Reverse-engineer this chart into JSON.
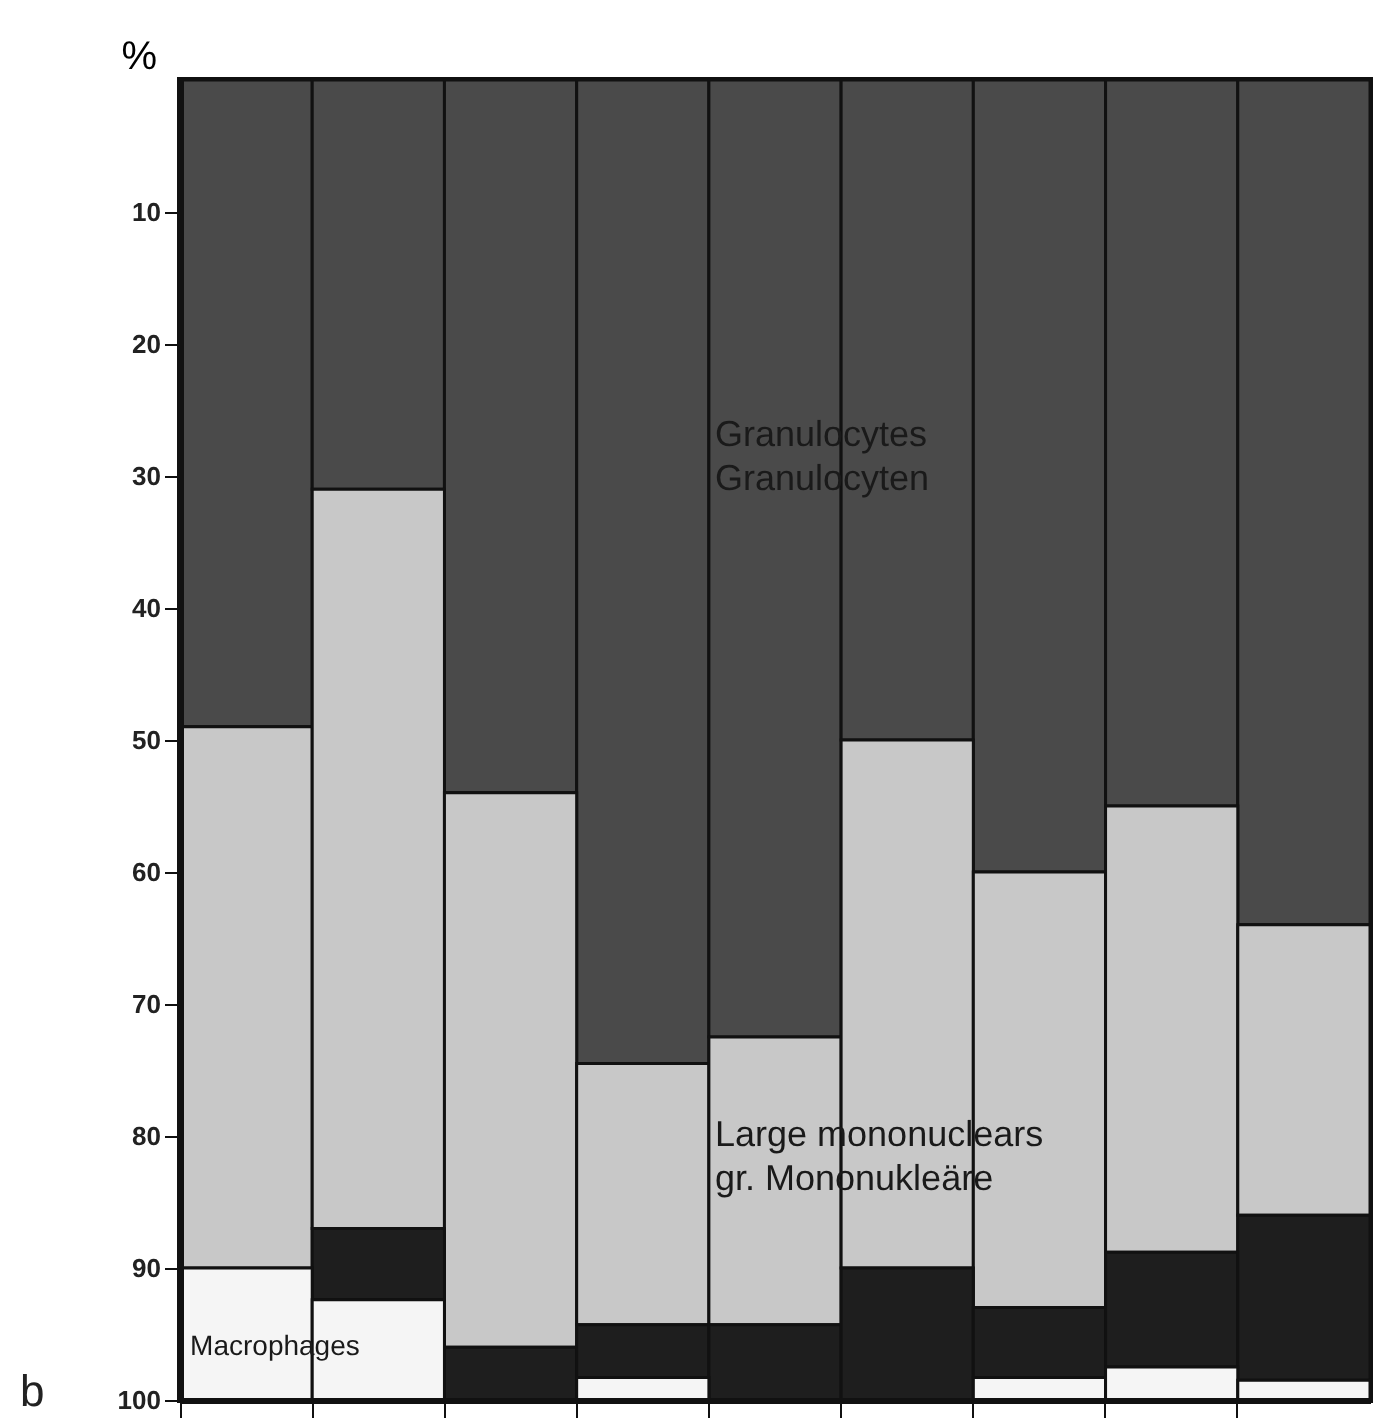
{
  "chart_data": {
    "type": "bar",
    "ylabel": "%",
    "categories": [
      null,
      null,
      null,
      null,
      null,
      null,
      null,
      null,
      null
    ],
    "series": [
      {
        "name": "Granulocytes\nGranulocyten",
        "color": "#4a4a4a",
        "values": [
          49,
          31,
          54,
          74.5,
          72.5,
          50,
          60,
          55,
          64
        ],
        "base": [
          0,
          0,
          0,
          0,
          0,
          0,
          0,
          0,
          0
        ]
      },
      {
        "name": "Large mononuclears\ngr. Mononukleäre",
        "color": "#c8c8c8",
        "values": [
          41,
          56,
          42,
          19.8,
          21.8,
          40,
          33,
          33.8,
          22
        ],
        "base": [
          49,
          31,
          54,
          74.5,
          72.5,
          50,
          60,
          55,
          64
        ]
      },
      {
        "color": "#1e1e1e",
        "values": [
          null,
          5.4,
          4,
          4,
          5.7,
          10,
          5.3,
          8.7,
          12.5
        ],
        "base": [
          null,
          87,
          96,
          94.3,
          94.3,
          90,
          93,
          88.8,
          86
        ]
      },
      {
        "name": "Macrophages",
        "color": "#f5f5f5",
        "values": [
          10,
          7.6,
          null,
          1.7,
          null,
          null,
          1.7,
          2.5,
          1.5
        ],
        "base": [
          90,
          92.4,
          null,
          98.3,
          null,
          null,
          98.3,
          97.5,
          98.5
        ]
      }
    ],
    "ylim": [
      100,
      0
    ],
    "yticks": [
      10,
      20,
      30,
      40,
      50,
      60,
      70,
      80,
      90,
      100
    ],
    "tick_labels": "y",
    "legend": false,
    "grid": false,
    "annotations": [
      "b"
    ]
  }
}
